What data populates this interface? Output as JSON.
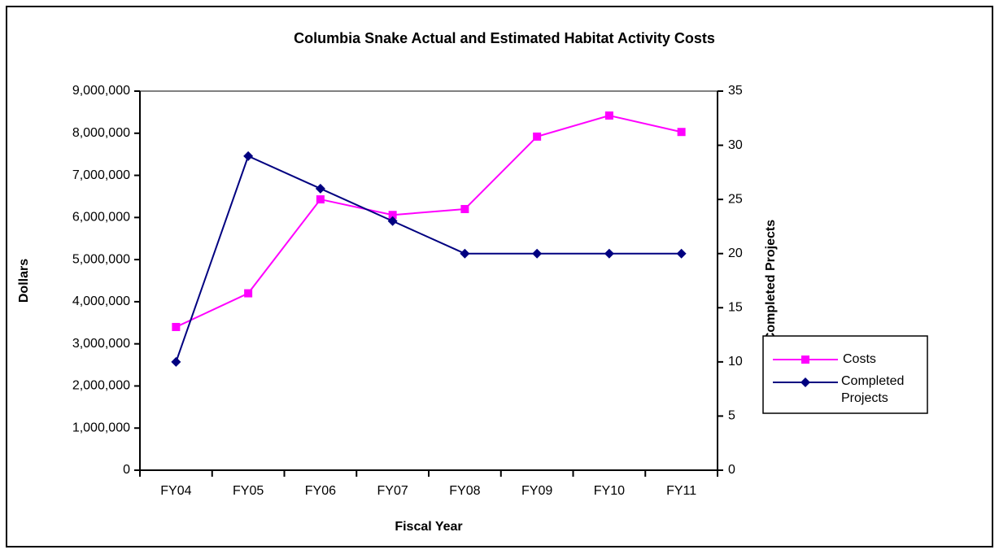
{
  "chart_data": {
    "type": "line",
    "title": "Columbia Snake Actual and Estimated Habitat Activity Costs",
    "x_label": "Fiscal Year",
    "y_label": "Dollars",
    "y2_label": "Completed Projects",
    "categories": [
      "FY04",
      "FY05",
      "FY06",
      "FY07",
      "FY08",
      "FY09",
      "FY10",
      "FY11"
    ],
    "series": [
      {
        "name": "Costs",
        "color": "#ff00ff",
        "marker": "square",
        "values": [
          3400000,
          4200000,
          6430000,
          6060000,
          6200000,
          7920000,
          8420000,
          8030000
        ]
      },
      {
        "name": "Completed Projects",
        "color": "#000080",
        "marker": "diamond",
        "axis": "y2",
        "values": [
          10,
          29,
          26,
          23,
          20,
          20,
          20,
          20
        ]
      }
    ],
    "ylim": [
      0,
      9000000
    ],
    "yticks": [
      0,
      {
        "value": 1000000,
        "label": "1,000,000"
      },
      {
        "value": 2000000,
        "label": "2,000,000"
      },
      {
        "value": 3000000,
        "label": "3,000,000"
      },
      {
        "value": 4000000,
        "label": "4,000,000"
      },
      {
        "value": 5000000,
        "label": "5,000,000"
      },
      {
        "value": 6000000,
        "label": "6,000,000"
      },
      {
        "value": 7000000,
        "label": "7,000,000"
      },
      {
        "value": 8000000,
        "label": "8,000,000"
      },
      {
        "value": 9000000,
        "label": "9,000,000"
      }
    ],
    "y2lim": [
      0,
      35
    ],
    "y2ticks": [
      0,
      5,
      10,
      15,
      20,
      25,
      30,
      35
    ],
    "legend": "right"
  }
}
